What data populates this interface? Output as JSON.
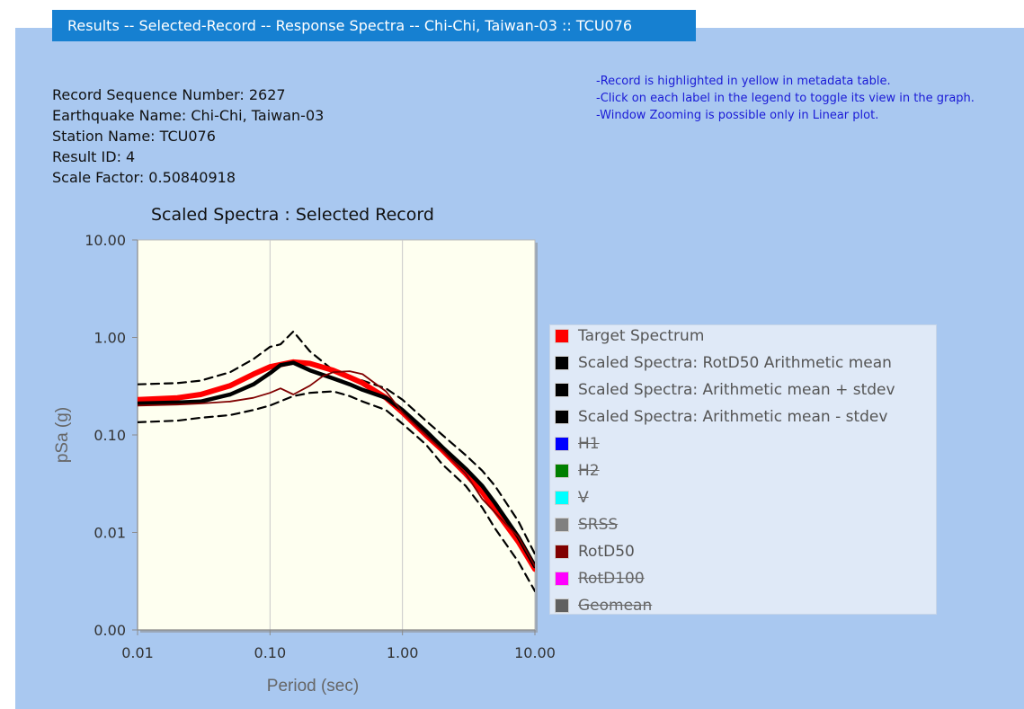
{
  "header": {
    "title": "Results -- Selected-Record -- Response Spectra -- Chi-Chi, Taiwan-03 :: TCU076"
  },
  "record": {
    "sequence": "Record Sequence Number: 2627",
    "earthquake": "Earthquake Name: Chi-Chi, Taiwan-03",
    "station": "Station Name: TCU076",
    "result_id": "Result ID: 4",
    "scale_factor": "Scale Factor: 0.50840918"
  },
  "notes": [
    "-Record is highlighted in yellow in metadata table.",
    "-Click on each label in the legend to toggle its view in the graph.",
    "-Window Zooming is possible only in Linear plot."
  ],
  "chart_data": {
    "type": "line",
    "title": "Scaled Spectra : Selected Record",
    "xlabel": "Period (sec)",
    "ylabel": "pSa (g)",
    "xscale": "log",
    "yscale": "log",
    "xlim": [
      0.01,
      10
    ],
    "ylim": [
      0.001,
      10
    ],
    "xticks": [
      0.01,
      0.1,
      1,
      10
    ],
    "xtick_labels": [
      "0.01",
      "0.10",
      "1.00",
      "10.00"
    ],
    "yticks": [
      0.001,
      0.01,
      0.1,
      1,
      10
    ],
    "ytick_labels": [
      "0.00",
      "0.01",
      "0.10",
      "1.00",
      "10.00"
    ],
    "grid": "vertical",
    "legend_position": "right",
    "series": [
      {
        "name": "Target Spectrum",
        "color": "#ff0000",
        "visible": true,
        "style": "thick",
        "x": [
          0.01,
          0.02,
          0.03,
          0.05,
          0.075,
          0.1,
          0.15,
          0.2,
          0.3,
          0.4,
          0.5,
          0.75,
          1,
          1.5,
          2,
          3,
          4,
          5,
          7.5,
          10
        ],
        "y": [
          0.23,
          0.24,
          0.26,
          0.32,
          0.42,
          0.5,
          0.56,
          0.54,
          0.46,
          0.39,
          0.34,
          0.24,
          0.17,
          0.1,
          0.07,
          0.04,
          0.026,
          0.017,
          0.008,
          0.0042
        ]
      },
      {
        "name": "Scaled Spectra: RotD50 Arithmetic mean",
        "color": "#000000",
        "visible": true,
        "style": "thick",
        "x": [
          0.01,
          0.02,
          0.03,
          0.05,
          0.075,
          0.1,
          0.12,
          0.15,
          0.2,
          0.3,
          0.4,
          0.5,
          0.75,
          1,
          1.5,
          2,
          3,
          4,
          5,
          7.5,
          10
        ],
        "y": [
          0.21,
          0.215,
          0.22,
          0.26,
          0.33,
          0.43,
          0.52,
          0.55,
          0.46,
          0.38,
          0.33,
          0.29,
          0.24,
          0.18,
          0.11,
          0.075,
          0.045,
          0.03,
          0.02,
          0.009,
          0.0045
        ]
      },
      {
        "name": "Scaled Spectra: Arithmetic mean + stdev",
        "color": "#000000",
        "visible": true,
        "style": "dashed",
        "x": [
          0.01,
          0.02,
          0.03,
          0.05,
          0.075,
          0.1,
          0.12,
          0.15,
          0.2,
          0.3,
          0.4,
          0.5,
          0.75,
          1,
          1.5,
          2,
          3,
          4,
          5,
          7.5,
          10
        ],
        "y": [
          0.33,
          0.34,
          0.36,
          0.44,
          0.6,
          0.8,
          0.85,
          1.15,
          0.72,
          0.46,
          0.4,
          0.36,
          0.3,
          0.23,
          0.14,
          0.1,
          0.062,
          0.043,
          0.03,
          0.013,
          0.006
        ]
      },
      {
        "name": "Scaled Spectra: Arithmetic mean - stdev",
        "color": "#000000",
        "visible": true,
        "style": "dashed",
        "x": [
          0.01,
          0.02,
          0.03,
          0.05,
          0.075,
          0.1,
          0.15,
          0.2,
          0.3,
          0.4,
          0.5,
          0.75,
          1,
          1.5,
          2,
          3,
          4,
          5,
          7.5,
          10
        ],
        "y": [
          0.135,
          0.14,
          0.15,
          0.16,
          0.18,
          0.2,
          0.25,
          0.27,
          0.28,
          0.25,
          0.22,
          0.18,
          0.13,
          0.08,
          0.05,
          0.03,
          0.018,
          0.011,
          0.005,
          0.0025
        ]
      },
      {
        "name": "H1",
        "color": "#0000ff",
        "visible": false
      },
      {
        "name": "H2",
        "color": "#008000",
        "visible": false
      },
      {
        "name": "V",
        "color": "#00ffff",
        "visible": false
      },
      {
        "name": "SRSS",
        "color": "#808080",
        "visible": false
      },
      {
        "name": "RotD50",
        "color": "#800000",
        "visible": true,
        "style": "thin",
        "x": [
          0.01,
          0.02,
          0.03,
          0.05,
          0.075,
          0.1,
          0.12,
          0.15,
          0.2,
          0.25,
          0.3,
          0.4,
          0.5,
          0.75,
          1,
          1.5,
          2,
          3,
          4,
          5,
          7.5,
          10
        ],
        "y": [
          0.2,
          0.205,
          0.21,
          0.22,
          0.24,
          0.27,
          0.3,
          0.26,
          0.32,
          0.4,
          0.44,
          0.45,
          0.42,
          0.28,
          0.17,
          0.1,
          0.07,
          0.04,
          0.022,
          0.016,
          0.009,
          0.0045
        ]
      },
      {
        "name": "RotD100",
        "color": "#ff00ff",
        "visible": false
      },
      {
        "name": "Geomean",
        "color": "#606060",
        "visible": false
      }
    ]
  }
}
